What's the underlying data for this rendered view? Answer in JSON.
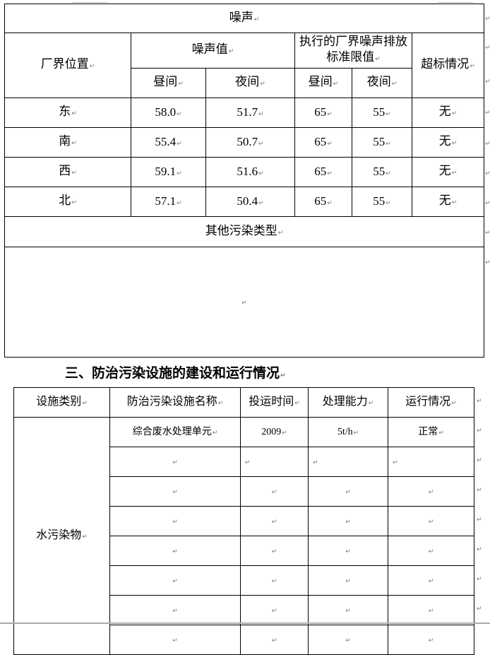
{
  "noise_table": {
    "title": "噪声",
    "col_location": "厂界位置",
    "col_noise_value": "噪声值",
    "col_standard": "执行的厂界噪声排放标准限值",
    "col_exceed": "超标情况",
    "sub_day": "昼间",
    "sub_night": "夜间",
    "rows": [
      {
        "location": "东",
        "day": "58.0",
        "night": "51.7",
        "std_day": "65",
        "std_night": "55",
        "exceed": "无"
      },
      {
        "location": "南",
        "day": "55.4",
        "night": "50.7",
        "std_day": "65",
        "std_night": "55",
        "exceed": "无"
      },
      {
        "location": "西",
        "day": "59.1",
        "night": "51.6",
        "std_day": "65",
        "std_night": "55",
        "exceed": "无"
      },
      {
        "location": "北",
        "day": "57.1",
        "night": "50.4",
        "std_day": "65",
        "std_night": "55",
        "exceed": "无"
      }
    ],
    "other_title": "其他污染类型"
  },
  "section_heading": "三、防治污染设施的建设和运行情况",
  "facility_table": {
    "headers": [
      "设施类别",
      "防治污染设施名称",
      "投运时间",
      "处理能力",
      "运行情况"
    ],
    "category": "水污染物",
    "rows": [
      {
        "name": "综合废水处理单元",
        "time": "2009",
        "capacity": "5t/h",
        "status": "正常"
      }
    ]
  }
}
